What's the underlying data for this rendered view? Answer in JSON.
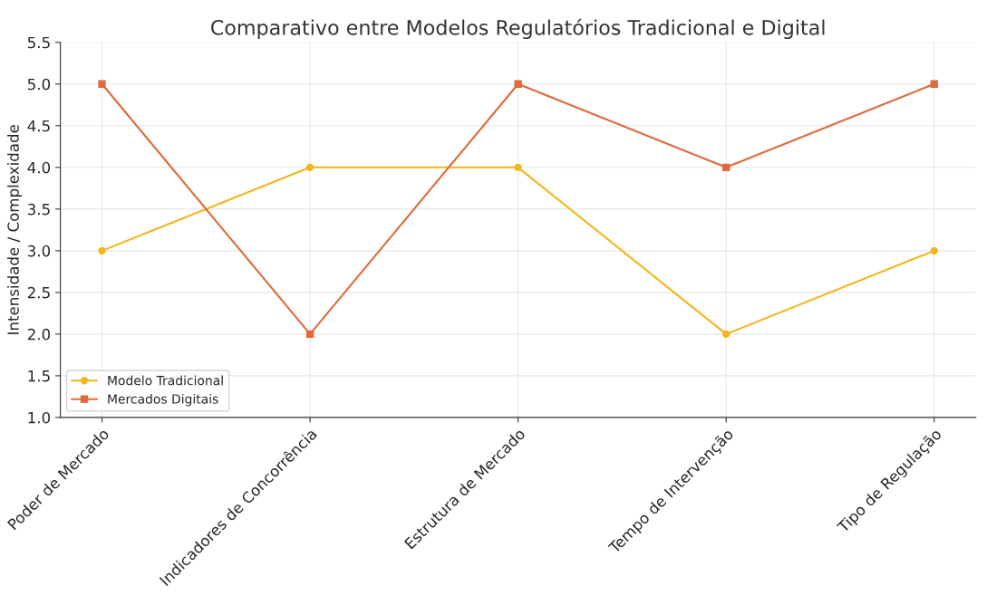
{
  "chart_data": {
    "type": "line",
    "title": "Comparativo entre Modelos Regulatórios Tradicional e Digital",
    "ylabel": "Intensidade / Complexidade",
    "categories": [
      "Poder de Mercado",
      "Indicadores de Concorrência",
      "Estrutura de Mercado",
      "Tempo de Intervenção",
      "Tipo de Regulação"
    ],
    "series": [
      {
        "name": "Modelo Tradicional",
        "color": "#f2b51b",
        "marker": "circle",
        "values": [
          3.0,
          4.0,
          4.0,
          2.0,
          3.0
        ]
      },
      {
        "name": "Mercados Digitais",
        "color": "#e0683a",
        "marker": "square",
        "values": [
          5.0,
          2.0,
          5.0,
          4.0,
          5.0
        ]
      }
    ],
    "ylim": [
      1.0,
      5.5
    ],
    "yticks": [
      {
        "value": 1,
        "label": "1.0"
      },
      1.5,
      {
        "value": 2,
        "label": "2.0"
      },
      2.5,
      {
        "value": 3,
        "label": "3.0"
      },
      3.5,
      {
        "value": 4,
        "label": "4.0"
      },
      4.5,
      {
        "value": 5,
        "label": "5.0"
      },
      5.5
    ],
    "grid": true,
    "legend": "bottom left",
    "line_style": "solid"
  }
}
